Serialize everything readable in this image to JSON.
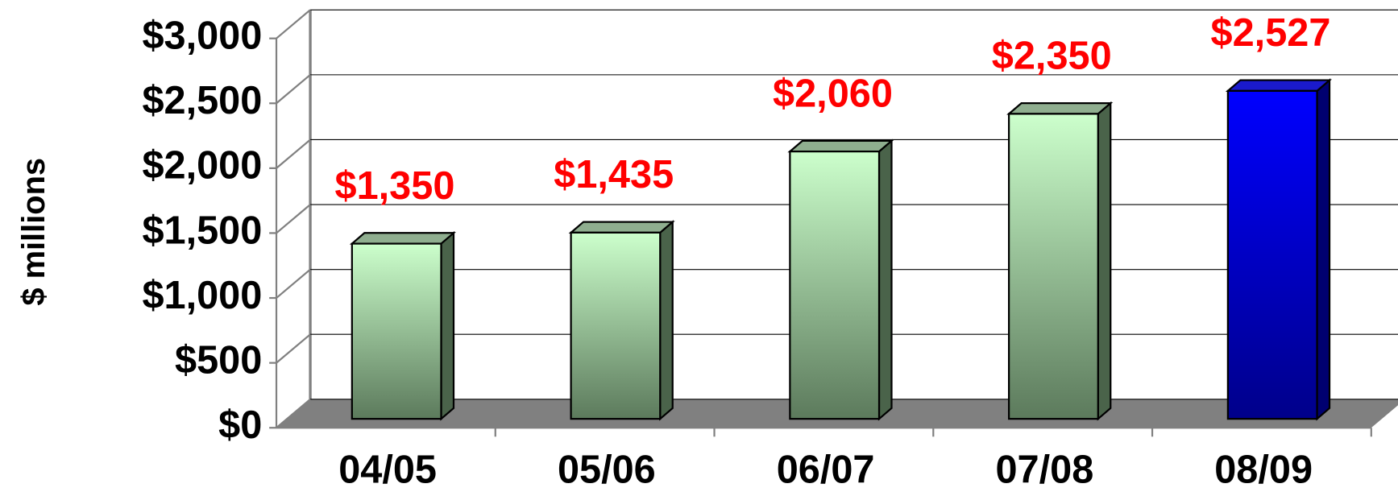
{
  "chart_data": {
    "type": "bar",
    "y_label": "$ millions",
    "categories": [
      "04/05",
      "05/06",
      "06/07",
      "07/08",
      "08/09"
    ],
    "values": [
      1350,
      1435,
      2060,
      2350,
      2527
    ],
    "value_labels": [
      "$1,350",
      "$1,435",
      "$2,060",
      "$2,350",
      "$2,527"
    ],
    "colors": [
      "#ccffcc",
      "#ccffcc",
      "#ccffcc",
      "#ccffcc",
      "#0000ff"
    ],
    "ylim": [
      0,
      3000
    ],
    "yticks": [
      {
        "value": 0,
        "label": "$0"
      },
      {
        "value": 500,
        "label": "$500"
      },
      {
        "value": 1000,
        "label": "$1,000"
      },
      {
        "value": 1500,
        "label": "$1,500"
      },
      {
        "value": 2000,
        "label": "$2,000"
      },
      {
        "value": 2500,
        "label": "$2,500"
      },
      {
        "value": 3000,
        "label": "$3,000"
      }
    ],
    "grid": true
  }
}
